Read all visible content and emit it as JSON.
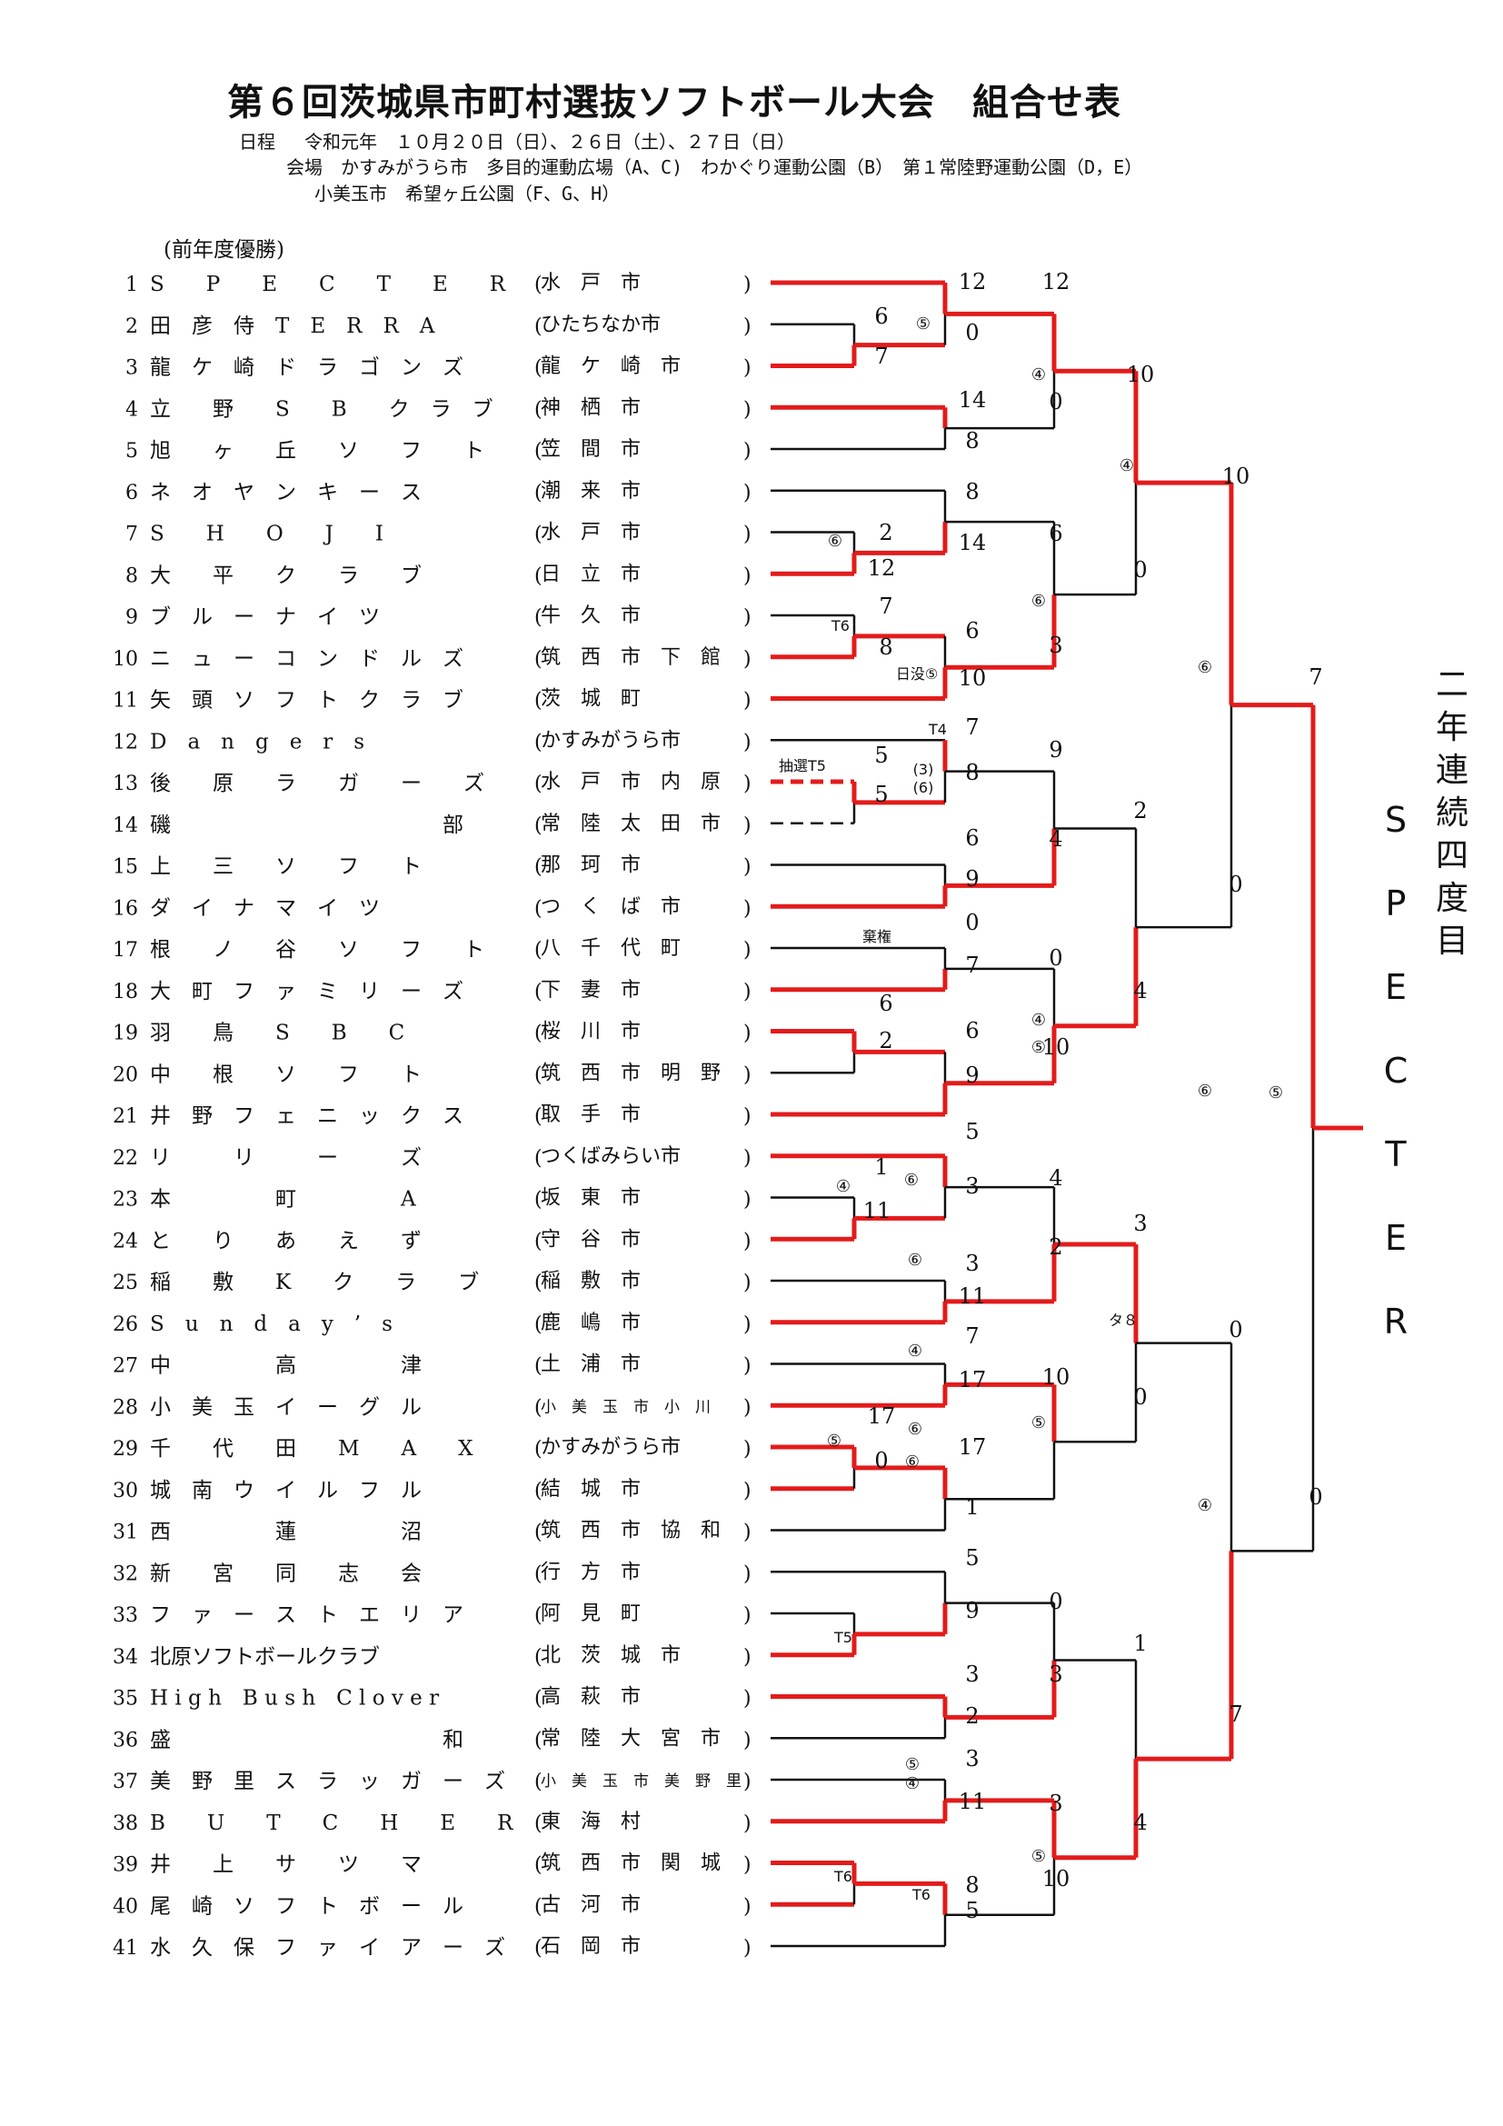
{
  "title": "第６回茨城県市町村選抜ソフトボール大会　組合せ表",
  "schedule": "日程　 令和元年　１０月２０日（日）、２６日（土）、２７日（日）",
  "venue_line1": "会場　かすみがうら市　多目的運動広場（A、C)　わかぐり運動公園（B）　第１常陸野運動公園（D，E）",
  "venue_line2": "小美玉市　希望ヶ丘公園（F、G、H）",
  "prev_champion_label": "(前年度優勝)",
  "teams": [
    {
      "no": "1",
      "name": "S　　P　　E　　C　　T　　E　　R",
      "city": "水　戸　市"
    },
    {
      "no": "2",
      "name": "田　彦　侍　T　E　R　R　A",
      "city": "ひたちなか市"
    },
    {
      "no": "3",
      "name": "龍　ケ　崎　ド　ラ　ゴ　ン　ズ",
      "city": "龍　ケ　崎　市"
    },
    {
      "no": "4",
      "name": "立　　野　　S　　B　　ク　ラ　ブ",
      "city": "神　栖　市"
    },
    {
      "no": "5",
      "name": "旭　　ヶ　　丘　　ソ　　フ　　ト",
      "city": "笠　間　市"
    },
    {
      "no": "6",
      "name": "ネ　オ　ヤ　ン　キ　ー　ス",
      "city": "潮　来　市"
    },
    {
      "no": "7",
      "name": "S　　H　　O　　J　　I",
      "city": "水　戸　市"
    },
    {
      "no": "8",
      "name": "大　　平　　ク　　ラ　　ブ",
      "city": "日　立　市"
    },
    {
      "no": "9",
      "name": "ブ　ル　ー　ナ　イ　ツ",
      "city": "牛　久　市"
    },
    {
      "no": "10",
      "name": "ニ　ュ　ー　コ　ン　ド　ル　ズ",
      "city": "筑　西　市　下　館"
    },
    {
      "no": "11",
      "name": "矢　頭　ソ　フ　ト　ク　ラ　ブ",
      "city": "茨　城　町"
    },
    {
      "no": "12",
      "name": "D　a　n　g　e　r　s",
      "city": "かすみがうら市"
    },
    {
      "no": "13",
      "name": "後　　原　　ラ　　ガ　　ー　　ズ",
      "city": "水　戸　市　内　原"
    },
    {
      "no": "14",
      "name": "磯　　　　　　　　　　　　　部",
      "city": "常　陸　太　田　市"
    },
    {
      "no": "15",
      "name": "上　　三　　ソ　　フ　　ト",
      "city": "那　珂　市"
    },
    {
      "no": "16",
      "name": "ダ　イ　ナ　マ　イ　ツ",
      "city": "つ　く　ば　市"
    },
    {
      "no": "17",
      "name": "根　　ノ　　谷　　ソ　　フ　　ト",
      "city": "八　千　代　町"
    },
    {
      "no": "18",
      "name": "大　町　フ　ァ　ミ　リ　ー　ズ",
      "city": "下　妻　市"
    },
    {
      "no": "19",
      "name": "羽　　鳥　　S　　B　　C",
      "city": "桜　川　市"
    },
    {
      "no": "20",
      "name": "中　　根　　ソ　　フ　　ト",
      "city": "筑　西　市　明　野"
    },
    {
      "no": "21",
      "name": "井　野　フ　ェ　ニ　ッ　ク　ス",
      "city": "取　手　市"
    },
    {
      "no": "22",
      "name": "リ　　　リ　　　ー　　　ズ",
      "city": "つくばみらい市"
    },
    {
      "no": "23",
      "name": "本　　　　　町　　　　　A",
      "city": "坂　東　市"
    },
    {
      "no": "24",
      "name": "と　　り　　あ　　え　　ず",
      "city": "守　谷　市"
    },
    {
      "no": "25",
      "name": "稲　　敷　　K　　ク　　ラ　　ブ",
      "city": "稲　敷　市"
    },
    {
      "no": "26",
      "name": "S　u　n　d　a　y　’　s",
      "city": "鹿　嶋　市"
    },
    {
      "no": "27",
      "name": "中　　　　　高　　　　　津",
      "city": "土　浦　市"
    },
    {
      "no": "28",
      "name": "小　美　玉　イ　ー　グ　ル",
      "city": "小　美　玉　市　小　川"
    },
    {
      "no": "29",
      "name": "千　　代　　田　　M　　A　　X",
      "city": "かすみがうら市"
    },
    {
      "no": "30",
      "name": "城　南　ウ　イ　ル　フ　ル",
      "city": "結　城　市"
    },
    {
      "no": "31",
      "name": "西　　　　　蓮　　　　　沼",
      "city": "筑　西　市　協　和"
    },
    {
      "no": "32",
      "name": "新　　宮　　同　　志　　会",
      "city": "行　方　市"
    },
    {
      "no": "33",
      "name": "フ　ァ　ー　ス　ト　エ　リ　ア",
      "city": "阿　見　町"
    },
    {
      "no": "34",
      "name": "北原ソフトボールクラブ",
      "city": "北　茨　城　市"
    },
    {
      "no": "35",
      "name": "H i g h　B u s h　C l o v e r",
      "city": "高　萩　市"
    },
    {
      "no": "36",
      "name": "盛　　　　　　　　　　　　　和",
      "city": "常　陸　大　宮　市"
    },
    {
      "no": "37",
      "name": "美　野　里　ス　ラ　ッ　ガ　ー　ズ",
      "city": "小　美　玉　市　美　野　里"
    },
    {
      "no": "38",
      "name": "B　　U　　T　　C　　H　　E　　R",
      "city": "東　海　村"
    },
    {
      "no": "39",
      "name": "井　　上　　サ　　ツ　　マ",
      "city": "筑　西　市　関　城"
    },
    {
      "no": "40",
      "name": "尾　崎　ソ　フ　ト　ボ　ー　ル",
      "city": "古　河　市"
    },
    {
      "no": "41",
      "name": "水　久　保　フ　ァ　イ　ア　ー　ズ",
      "city": "石　岡　市"
    }
  ],
  "score_labels": [
    "6",
    "7",
    "2",
    "12",
    "7",
    "8",
    "5",
    "5",
    "6",
    "2",
    "1",
    "11",
    "17",
    "0",
    "12",
    "0",
    "14",
    "8",
    "8",
    "14",
    "6",
    "10",
    "7",
    "8",
    "6",
    "9",
    "0",
    "7",
    "6",
    "9",
    "5",
    "3",
    "3",
    "11",
    "7",
    "17",
    "17",
    "1",
    "5",
    "9",
    "3",
    "2",
    "3",
    "11",
    "8",
    "5",
    "12",
    "0",
    "6",
    "3",
    "9",
    "4",
    "0",
    "10",
    "4",
    "2",
    "10",
    "0",
    "3",
    "3",
    "10",
    "10",
    "0",
    "2",
    "4",
    "3",
    "0",
    "1",
    "4",
    "10",
    "0",
    "0",
    "7",
    "7",
    "0"
  ],
  "mark_labels": [
    "⑤",
    "④",
    "④",
    "⑥",
    "⑥",
    "④",
    "⑤",
    "⑥",
    "⑥",
    "④",
    "⑥",
    "⑤",
    "⑥",
    "④",
    "⑤",
    "④",
    "⑤",
    "④",
    "⑥",
    "⑤",
    "⑤",
    "⑥"
  ],
  "small_notes": [
    "T6",
    "日没⑤",
    "T4",
    "抽選T5",
    "(3)",
    "(6)",
    "棄権",
    "タ８",
    "T5",
    "T6",
    "T6"
  ],
  "champion_letters": [
    "S",
    "P",
    "E",
    "C",
    "T",
    "E",
    "R"
  ],
  "champion_note": [
    "二",
    "年",
    "連",
    "続",
    "四",
    "度",
    "目"
  ],
  "colors": {
    "winner": "#e31b1b",
    "loser": "#111111"
  }
}
